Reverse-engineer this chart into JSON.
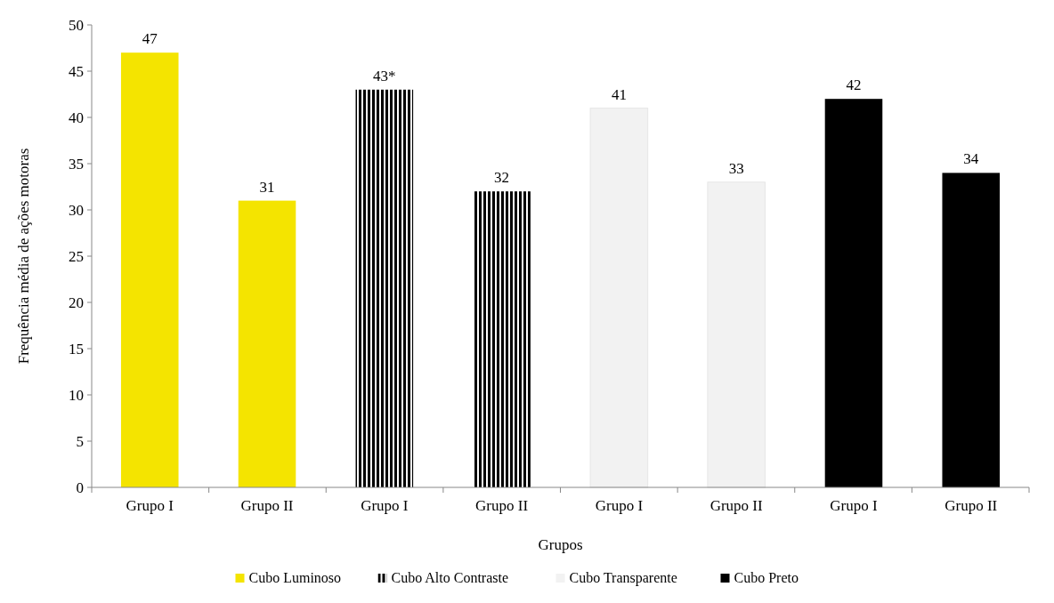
{
  "chart_data": {
    "type": "bar",
    "xlabel": "Grupos",
    "ylabel": "Frequência média de ações motoras",
    "categories": [
      "Grupo I",
      "Grupo II",
      "Grupo I",
      "Grupo II",
      "Grupo I",
      "Grupo II",
      "Grupo I",
      "Grupo II"
    ],
    "series": [
      {
        "name": "Cubo Luminoso",
        "color": "#f4e400",
        "values": [
          47,
          31,
          null,
          null,
          null,
          null,
          null,
          null
        ],
        "value_labels": [
          "47",
          "31",
          null,
          null,
          null,
          null,
          null,
          null
        ]
      },
      {
        "name": "Cubo Alto Contraste",
        "color": "#000000",
        "values": [
          null,
          null,
          43,
          32,
          null,
          null,
          null,
          null
        ],
        "value_labels": [
          null,
          null,
          "43*",
          "32",
          null,
          null,
          null,
          null
        ]
      },
      {
        "name": "Cubo Transparente",
        "color": "#f2f2f2",
        "values": [
          null,
          null,
          null,
          null,
          41,
          33,
          null,
          null
        ],
        "value_labels": [
          null,
          null,
          null,
          null,
          "41",
          "33",
          null,
          null
        ]
      },
      {
        "name": "Cubo Preto",
        "color": "#000000",
        "values": [
          null,
          null,
          null,
          null,
          null,
          null,
          42,
          34
        ],
        "value_labels": [
          null,
          null,
          null,
          null,
          null,
          null,
          "42",
          "34"
        ]
      }
    ],
    "ylim": [
      0,
      50
    ],
    "yticks": [
      0,
      5,
      10,
      15,
      20,
      25,
      30,
      35,
      40,
      45,
      50
    ],
    "legend": "bottom"
  }
}
